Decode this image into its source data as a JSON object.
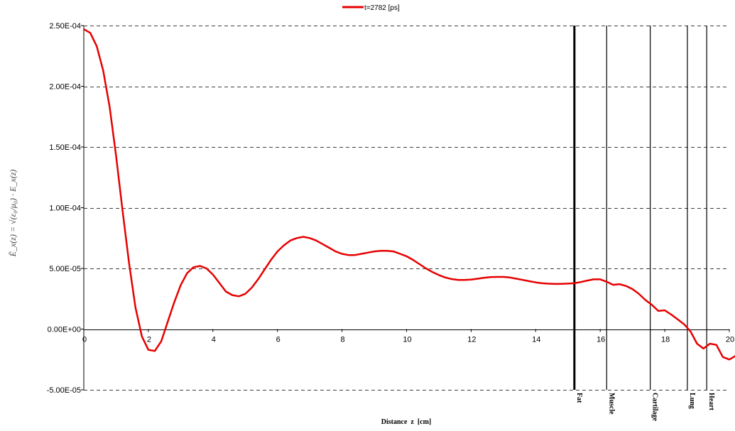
{
  "chart_data": {
    "type": "line",
    "legend": {
      "label": "t=2782 [ps]",
      "position": "top-center"
    },
    "xlabel": "Distance  z  [cm]",
    "ylabel": "Ẽ_x(z) = √(ε₀/μ₀) · E_x(z)",
    "xlim": [
      0,
      20
    ],
    "ylim": [
      -5e-05,
      0.00025
    ],
    "x_ticks": [
      "0",
      "2",
      "4",
      "6",
      "8",
      "10",
      "12",
      "14",
      "16",
      "18",
      "20"
    ],
    "y_ticks": [
      {
        "value": 0.00025,
        "label": "2.50E-04"
      },
      {
        "value": 0.0002,
        "label": "2.00E-04"
      },
      {
        "value": 0.00015,
        "label": "1.50E-04"
      },
      {
        "value": 0.0001,
        "label": "1.00E-04"
      },
      {
        "value": 5e-05,
        "label": "5.00E-05"
      },
      {
        "value": 0.0,
        "label": "0.00E+00"
      },
      {
        "value": -5e-05,
        "label": "-5.00E-05"
      }
    ],
    "grid": "horizontal-dashed",
    "series": [
      {
        "name": "t=2782 [ps]",
        "color": "#e60000",
        "points": [
          [
            0,
            0.000247
          ],
          [
            0.2,
            0.000244
          ],
          [
            0.4,
            0.000233
          ],
          [
            0.6,
            0.000213
          ],
          [
            0.8,
            0.000183
          ],
          [
            1.0,
            0.000143
          ],
          [
            1.2,
            9.8e-05
          ],
          [
            1.4,
            5.5e-05
          ],
          [
            1.6,
            1.8e-05
          ],
          [
            1.8,
            -6e-06
          ],
          [
            2.0,
            -1.7e-05
          ],
          [
            2.2,
            -1.8e-05
          ],
          [
            2.4,
            -1e-05
          ],
          [
            2.6,
            6e-06
          ],
          [
            2.8,
            2.2e-05
          ],
          [
            3.0,
            3.6e-05
          ],
          [
            3.2,
            4.6e-05
          ],
          [
            3.4,
            5.1e-05
          ],
          [
            3.6,
            5.2e-05
          ],
          [
            3.8,
            5e-05
          ],
          [
            4.0,
            4.5e-05
          ],
          [
            4.2,
            3.8e-05
          ],
          [
            4.4,
            3.1e-05
          ],
          [
            4.6,
            2.8e-05
          ],
          [
            4.8,
            2.7e-05
          ],
          [
            5.0,
            2.9e-05
          ],
          [
            5.2,
            3.4e-05
          ],
          [
            5.4,
            4.1e-05
          ],
          [
            5.6,
            4.9e-05
          ],
          [
            5.8,
            5.7e-05
          ],
          [
            6.0,
            6.4e-05
          ],
          [
            6.2,
            6.9e-05
          ],
          [
            6.4,
            7.3e-05
          ],
          [
            6.6,
            7.5e-05
          ],
          [
            6.8,
            7.6e-05
          ],
          [
            7.0,
            7.5e-05
          ],
          [
            7.2,
            7.3e-05
          ],
          [
            7.4,
            7e-05
          ],
          [
            7.6,
            6.7e-05
          ],
          [
            7.8,
            6.4e-05
          ],
          [
            8.0,
            6.2e-05
          ],
          [
            8.2,
            6.1e-05
          ],
          [
            8.4,
            6.1e-05
          ],
          [
            8.6,
            6.2e-05
          ],
          [
            8.8,
            6.3e-05
          ],
          [
            9.0,
            6.4e-05
          ],
          [
            9.2,
            6.45e-05
          ],
          [
            9.4,
            6.45e-05
          ],
          [
            9.6,
            6.4e-05
          ],
          [
            9.8,
            6.2e-05
          ],
          [
            10.0,
            6e-05
          ],
          [
            10.2,
            5.7e-05
          ],
          [
            10.4,
            5.35e-05
          ],
          [
            10.6,
            5e-05
          ],
          [
            10.8,
            4.7e-05
          ],
          [
            11.0,
            4.45e-05
          ],
          [
            11.2,
            4.25e-05
          ],
          [
            11.4,
            4.12e-05
          ],
          [
            11.6,
            4.05e-05
          ],
          [
            11.8,
            4.05e-05
          ],
          [
            12.0,
            4.08e-05
          ],
          [
            12.2,
            4.15e-05
          ],
          [
            12.4,
            4.22e-05
          ],
          [
            12.6,
            4.28e-05
          ],
          [
            12.8,
            4.3e-05
          ],
          [
            13.0,
            4.3e-05
          ],
          [
            13.2,
            4.25e-05
          ],
          [
            13.4,
            4.15e-05
          ],
          [
            13.6,
            4.05e-05
          ],
          [
            13.8,
            3.95e-05
          ],
          [
            14.0,
            3.85e-05
          ],
          [
            14.2,
            3.78e-05
          ],
          [
            14.4,
            3.74e-05
          ],
          [
            14.6,
            3.72e-05
          ],
          [
            14.8,
            3.73e-05
          ],
          [
            15.0,
            3.75e-05
          ],
          [
            15.2,
            3.78e-05
          ],
          [
            15.4,
            3.88e-05
          ],
          [
            15.6,
            4e-05
          ],
          [
            15.8,
            4.1e-05
          ],
          [
            16.0,
            4.1e-05
          ],
          [
            16.2,
            3.9e-05
          ],
          [
            16.4,
            3.65e-05
          ],
          [
            16.6,
            3.7e-05
          ],
          [
            16.8,
            3.55e-05
          ],
          [
            17.0,
            3.3e-05
          ],
          [
            17.2,
            2.9e-05
          ],
          [
            17.4,
            2.4e-05
          ],
          [
            17.6,
            2e-05
          ],
          [
            17.8,
            1.5e-05
          ],
          [
            18.0,
            1.55e-05
          ],
          [
            18.2,
            1.2e-05
          ],
          [
            18.4,
            8e-06
          ],
          [
            18.6,
            4e-06
          ],
          [
            18.8,
            -2e-06
          ],
          [
            19.0,
            -1.2e-05
          ],
          [
            19.2,
            -1.6e-05
          ],
          [
            19.4,
            -1.2e-05
          ],
          [
            19.6,
            -1.3e-05
          ],
          [
            19.8,
            -2.3e-05
          ],
          [
            20.0,
            -2.5e-05
          ],
          [
            20.2,
            -2.2e-05
          ],
          [
            20.4,
            -2.7e-05
          ]
        ]
      }
    ],
    "regions": [
      {
        "label": "Fat",
        "x": 15.2,
        "bold": true
      },
      {
        "label": "Muscle",
        "x": 16.2
      },
      {
        "label": "Cartilage",
        "x": 17.55
      },
      {
        "label": "Lung",
        "x": 18.7
      },
      {
        "label": "Heart",
        "x": 19.3
      }
    ]
  }
}
